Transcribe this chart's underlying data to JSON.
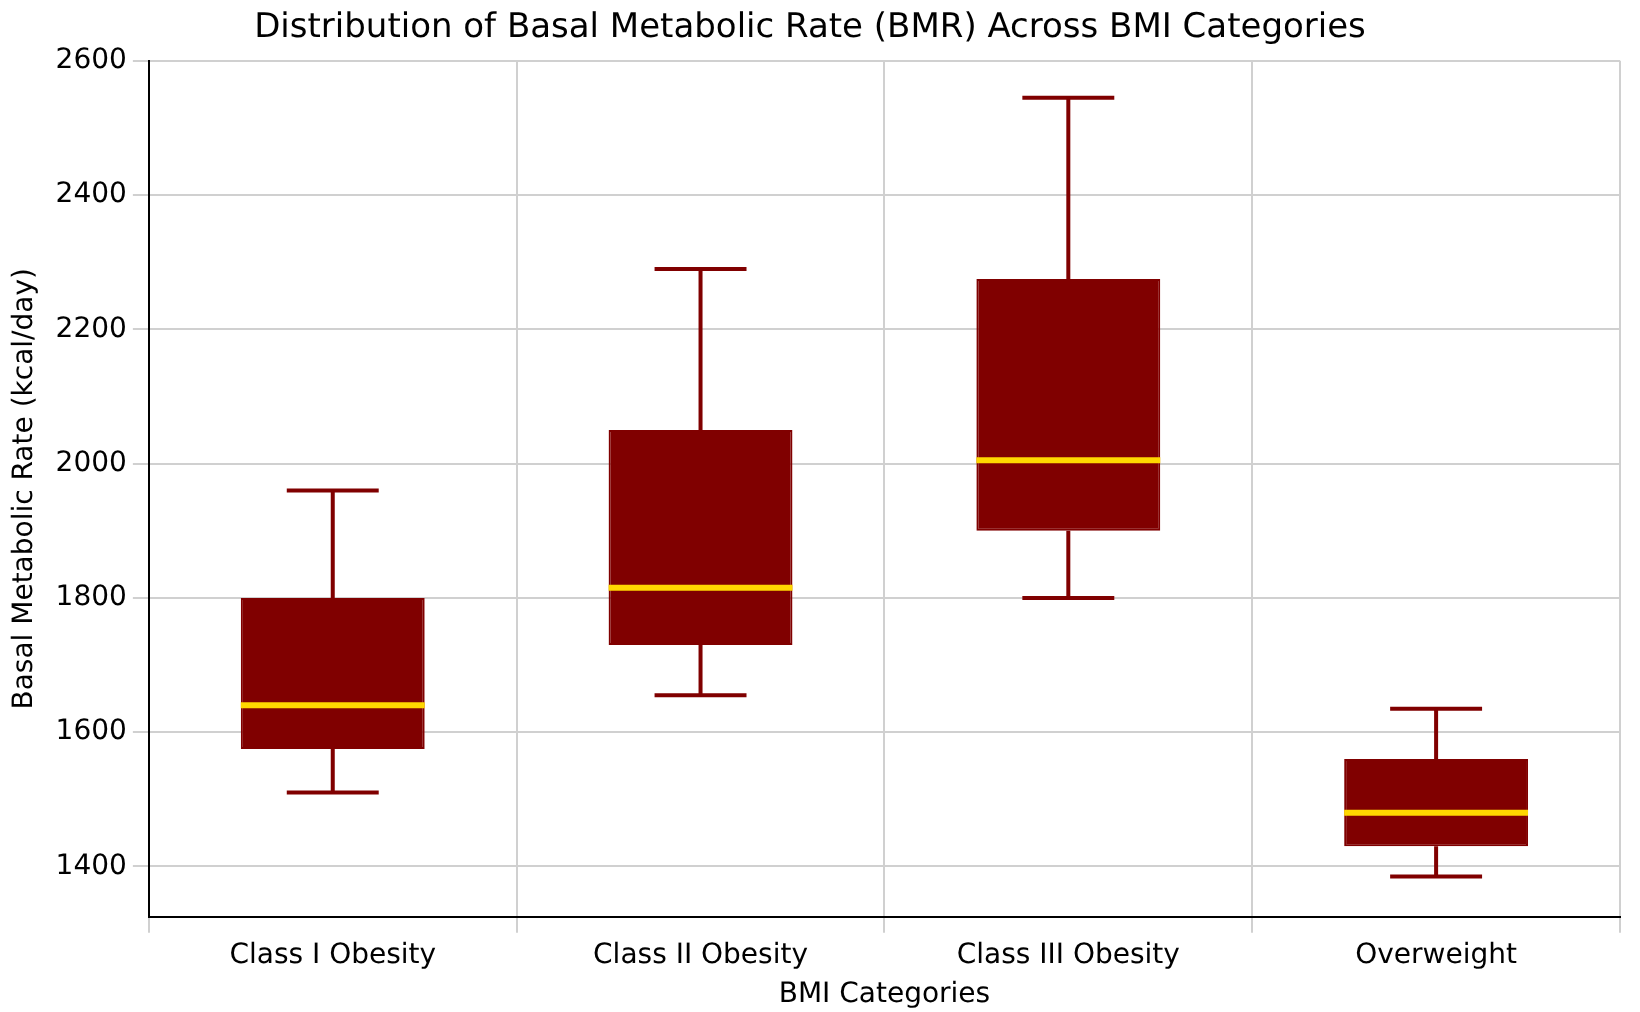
{
  "chart_data": {
    "type": "box",
    "title": "Distribution of Basal Metabolic Rate (BMR) Across BMI Categories",
    "xlabel": "BMI Categories",
    "ylabel": "Basal Metabolic Rate (kcal/day)",
    "categories": [
      "Class I Obesity",
      "Class II Obesity",
      "Class III Obesity",
      "Overweight"
    ],
    "color": "#800000",
    "boxes": [
      {
        "low": 1510,
        "q1": 1575,
        "median": 1640,
        "q3": 1800,
        "high": 1960
      },
      {
        "low": 1655,
        "q1": 1730,
        "median": 1815,
        "q3": 2050,
        "high": 2290
      },
      {
        "low": 1800,
        "q1": 1900,
        "median": 2005,
        "q3": 2275,
        "high": 2545
      },
      {
        "low": 1385,
        "q1": 1430,
        "median": 1480,
        "q3": 1560,
        "high": 1635
      }
    ],
    "ylim": [
      1325,
      2600
    ],
    "yticks": [
      1400,
      1600,
      1800,
      2000,
      2200,
      2400,
      2600
    ],
    "grid": true
  }
}
